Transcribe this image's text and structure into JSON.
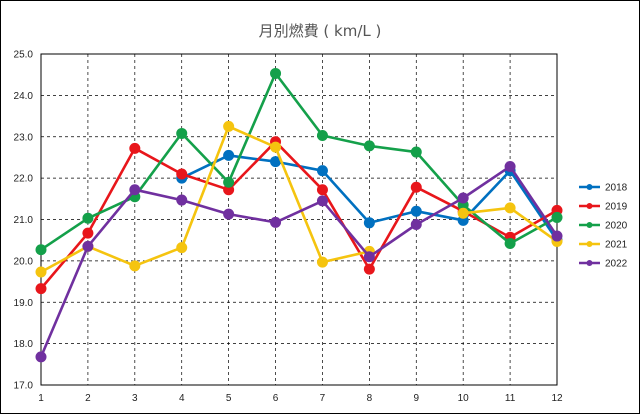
{
  "chart_data": {
    "type": "line",
    "title": "月別燃費 ( km/L )",
    "xlabel": "",
    "ylabel": "",
    "categories": [
      "1",
      "2",
      "3",
      "4",
      "5",
      "6",
      "7",
      "8",
      "9",
      "10",
      "11",
      "12"
    ],
    "ylim": [
      17.0,
      25.0
    ],
    "yticks": [
      "17.0",
      "18.0",
      "19.0",
      "20.0",
      "21.0",
      "22.0",
      "23.0",
      "24.0",
      "25.0"
    ],
    "grid": true,
    "legend_position": "right",
    "series": [
      {
        "name": "2018",
        "color": "#0070c0",
        "values": [
          null,
          null,
          null,
          22.0,
          22.55,
          22.4,
          22.18,
          20.92,
          21.2,
          20.98,
          22.18,
          20.5
        ]
      },
      {
        "name": "2019",
        "color": "#e8161b",
        "values": [
          19.33,
          20.67,
          22.72,
          22.1,
          21.72,
          22.88,
          21.72,
          19.8,
          21.78,
          21.2,
          20.57,
          21.22
        ]
      },
      {
        "name": "2020",
        "color": "#14a04a",
        "values": [
          20.27,
          21.03,
          21.55,
          23.08,
          21.9,
          24.53,
          23.03,
          22.78,
          22.63,
          21.35,
          20.42,
          21.05
        ]
      },
      {
        "name": "2021",
        "color": "#f5c40f",
        "values": [
          19.73,
          20.35,
          19.88,
          20.32,
          23.25,
          22.75,
          19.97,
          20.23,
          null,
          21.15,
          21.28,
          20.47
        ]
      },
      {
        "name": "2022",
        "color": "#70309f",
        "values": [
          17.68,
          20.35,
          21.72,
          21.47,
          21.13,
          20.93,
          21.45,
          20.1,
          20.88,
          21.52,
          22.28,
          20.6
        ]
      }
    ]
  }
}
